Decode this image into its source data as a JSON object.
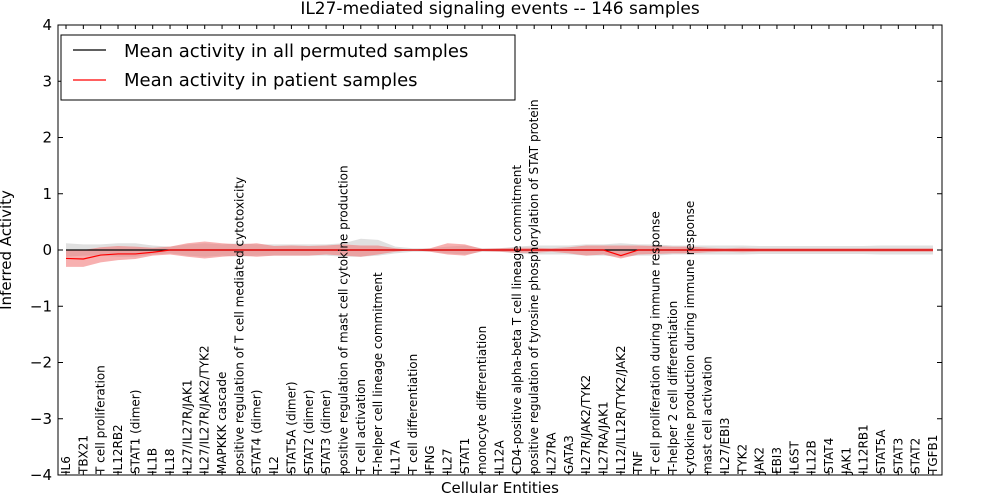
{
  "chart_data": {
    "type": "line",
    "title": "IL27-mediated signaling events -- 146 samples",
    "xlabel": "Cellular Entities",
    "ylabel": "Inferred Activity",
    "ylim": [
      -4,
      4
    ],
    "yticks": [
      "−4",
      "−3",
      "−2",
      "−1",
      "0",
      "1",
      "2",
      "3",
      "4"
    ],
    "yticks_values": [
      -4,
      -3,
      -2,
      -1,
      0,
      1,
      2,
      3,
      4
    ],
    "grid": false,
    "legend_position": "top-left",
    "categories": [
      "IL6",
      "TBX21",
      "T cell proliferation",
      "IL12RB2",
      "STAT1 (dimer)",
      "IL1B",
      "IL18",
      "IL27/IL27R/JAK1",
      "IL27/IL27R/JAK2/TYK2",
      "MAPKKK cascade",
      "positive regulation of T cell mediated cytotoxicity",
      "STAT4 (dimer)",
      "IL2",
      "STAT5A (dimer)",
      "STAT2 (dimer)",
      "STAT3 (dimer)",
      "positive regulation of mast cell cytokine production",
      "T cell activation",
      "T-helper cell lineage commitment",
      "IL17A",
      "T cell differentiation",
      "IFNG",
      "IL27",
      "STAT1",
      "monocyte differentiation",
      "IL12A",
      "CD4-positive alpha-beta T cell lineage commitment",
      "positive regulation of tyrosine phosphorylation of STAT protein",
      "IL27RA",
      "GATA3",
      "IL27R/JAK2/TYK2",
      "IL27RA/JAK1",
      "IL12/IL12R/TYK2/JAK2",
      "TNF",
      "T cell proliferation during immune response",
      "T-helper 2 cell differentiation",
      "cytokine production during immune response",
      "mast cell activation",
      "IL27/EBI3",
      "TYK2",
      "JAK2",
      "EBI3",
      "IL6ST",
      "IL12B",
      "STAT4",
      "JAK1",
      "IL12RB1",
      "STAT5A",
      "STAT3",
      "STAT2",
      "TGFB1"
    ],
    "series": [
      {
        "name": "Mean activity in all permuted samples",
        "color": "#000000",
        "values": [
          0.0,
          0.0,
          0.0,
          0.0,
          0.0,
          0.0,
          0.0,
          0.0,
          0.0,
          0.0,
          0.0,
          0.0,
          0.0,
          0.0,
          0.0,
          0.0,
          0.0,
          0.0,
          0.0,
          0.0,
          0.0,
          0.0,
          0.0,
          0.0,
          0.0,
          0.0,
          0.0,
          0.0,
          0.0,
          0.0,
          0.0,
          0.0,
          0.0,
          0.0,
          0.0,
          0.0,
          0.0,
          0.0,
          0.0,
          0.0,
          0.0,
          0.0,
          0.0,
          0.0,
          0.0,
          0.0,
          0.0,
          0.0,
          0.0,
          0.0,
          0.0
        ],
        "band_lower": [
          -0.12,
          -0.1,
          -0.1,
          -0.12,
          -0.12,
          -0.08,
          -0.06,
          -0.1,
          -0.12,
          -0.1,
          -0.12,
          -0.1,
          -0.1,
          -0.1,
          -0.1,
          -0.1,
          -0.12,
          -0.12,
          -0.1,
          -0.06,
          -0.03,
          -0.03,
          -0.06,
          -0.08,
          -0.03,
          -0.03,
          -0.06,
          -0.08,
          -0.08,
          -0.08,
          -0.1,
          -0.1,
          -0.12,
          -0.1,
          -0.1,
          -0.08,
          -0.08,
          -0.08,
          -0.08,
          -0.08,
          -0.07,
          -0.07,
          -0.07,
          -0.07,
          -0.07,
          -0.07,
          -0.07,
          -0.08,
          -0.08,
          -0.08,
          -0.08
        ],
        "band_upper": [
          0.12,
          0.1,
          0.1,
          0.12,
          0.12,
          0.08,
          0.06,
          0.1,
          0.12,
          0.1,
          0.12,
          0.1,
          0.1,
          0.1,
          0.1,
          0.1,
          0.12,
          0.2,
          0.18,
          0.06,
          0.03,
          0.03,
          0.06,
          0.08,
          0.03,
          0.03,
          0.06,
          0.08,
          0.08,
          0.08,
          0.1,
          0.1,
          0.12,
          0.1,
          0.1,
          0.08,
          0.08,
          0.08,
          0.08,
          0.08,
          0.07,
          0.07,
          0.07,
          0.07,
          0.07,
          0.07,
          0.07,
          0.08,
          0.08,
          0.08,
          0.08
        ]
      },
      {
        "name": "Mean activity in patient samples",
        "color": "#ff0000",
        "values": [
          -0.15,
          -0.16,
          -0.09,
          -0.07,
          -0.07,
          -0.04,
          0.0,
          0.0,
          0.0,
          0.0,
          0.0,
          0.0,
          0.0,
          0.0,
          0.0,
          0.0,
          0.0,
          0.0,
          0.0,
          0.0,
          0.0,
          0.0,
          0.0,
          0.0,
          0.0,
          0.0,
          0.0,
          0.0,
          0.0,
          0.0,
          0.0,
          0.0,
          -0.1,
          0.0,
          0.0,
          0.0,
          0.0,
          0.0,
          0.0,
          0.0,
          0.0,
          0.0,
          0.0,
          0.0,
          0.0,
          0.0,
          0.0,
          0.0,
          0.0,
          0.0,
          0.0
        ],
        "band_lower": [
          -0.3,
          -0.3,
          -0.22,
          -0.18,
          -0.16,
          -0.1,
          -0.08,
          -0.12,
          -0.15,
          -0.12,
          -0.1,
          -0.12,
          -0.1,
          -0.1,
          -0.1,
          -0.08,
          -0.1,
          -0.12,
          -0.08,
          -0.03,
          0.0,
          -0.03,
          -0.08,
          -0.1,
          -0.02,
          -0.03,
          -0.05,
          -0.05,
          -0.03,
          -0.06,
          -0.1,
          -0.08,
          -0.15,
          -0.08,
          -0.07,
          -0.06,
          -0.06,
          -0.04,
          -0.03,
          -0.04,
          -0.03,
          -0.03,
          -0.03,
          -0.03,
          -0.03,
          -0.03,
          -0.03,
          -0.03,
          -0.03,
          -0.03,
          -0.03
        ],
        "band_upper": [
          0.0,
          0.0,
          0.05,
          0.07,
          0.06,
          0.04,
          0.06,
          0.12,
          0.15,
          0.12,
          0.1,
          0.12,
          0.07,
          0.08,
          0.07,
          0.08,
          0.1,
          0.08,
          0.08,
          0.03,
          0.0,
          0.03,
          0.12,
          0.1,
          0.02,
          0.03,
          0.04,
          0.04,
          0.03,
          0.05,
          0.08,
          0.08,
          0.08,
          0.08,
          0.07,
          0.06,
          0.06,
          0.04,
          0.03,
          0.04,
          0.03,
          0.03,
          0.03,
          0.03,
          0.03,
          0.03,
          0.03,
          0.03,
          0.03,
          0.03,
          0.03
        ]
      }
    ]
  }
}
